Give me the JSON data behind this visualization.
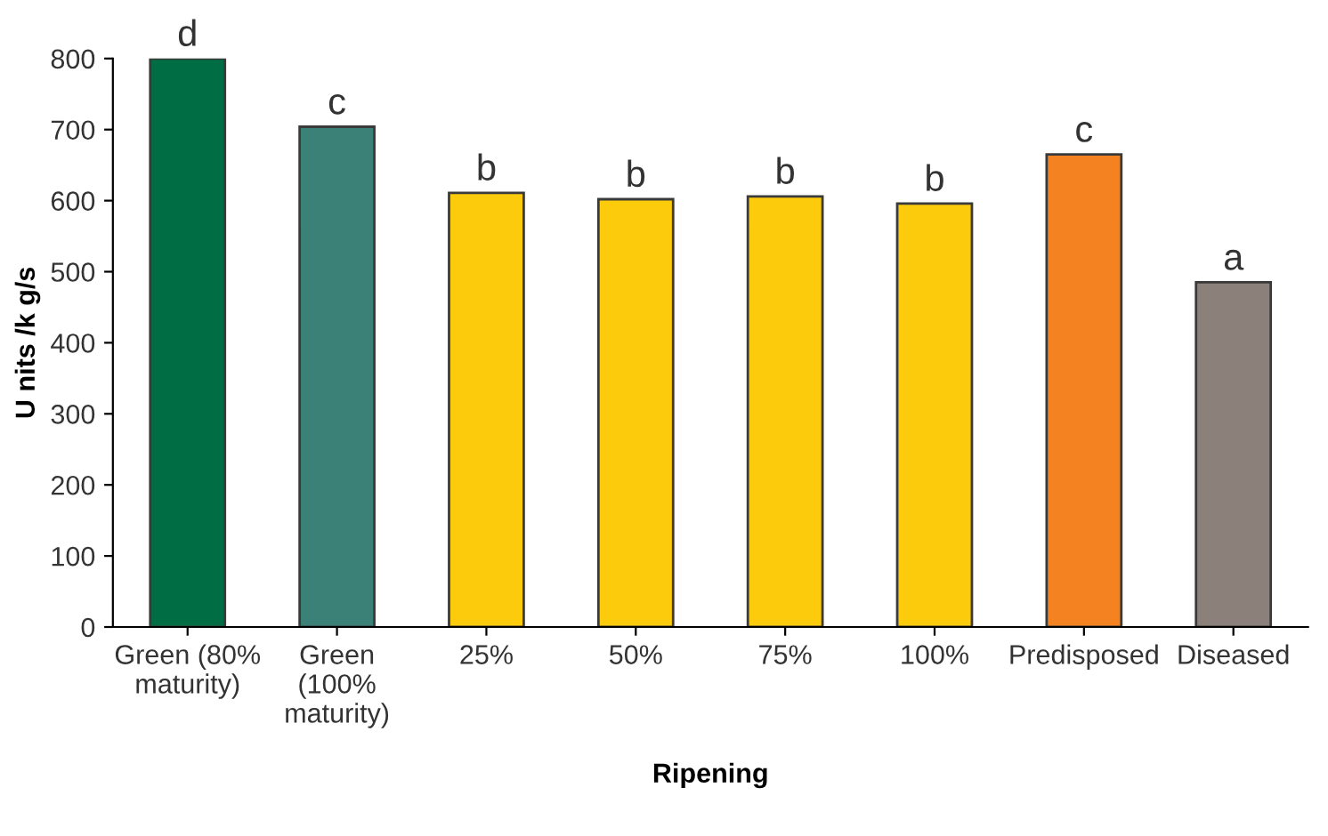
{
  "chart_data": {
    "type": "bar",
    "xlabel": "Ripening",
    "ylabel": "U nits /k g/s",
    "categories": [
      "Green (80%\nmaturity)",
      "Green\n(100%\nmaturity)",
      "25%",
      "50%",
      "75%",
      "100%",
      "Predisposed",
      "Diseased"
    ],
    "values": [
      800,
      704,
      611,
      602,
      606,
      596,
      665,
      485
    ],
    "colors": [
      "#006d44",
      "#3b8178",
      "#fccb0b",
      "#fccb0b",
      "#fccb0b",
      "#fccb0b",
      "#f58220",
      "#8c807b"
    ],
    "value_labels": [
      "d",
      "c",
      "b",
      "b",
      "b",
      "b",
      "c",
      "a"
    ],
    "ylim": [
      0,
      800
    ],
    "yticks": [
      0,
      100,
      200,
      300,
      400,
      500,
      600,
      700,
      800
    ],
    "grid": false,
    "legend": false
  }
}
